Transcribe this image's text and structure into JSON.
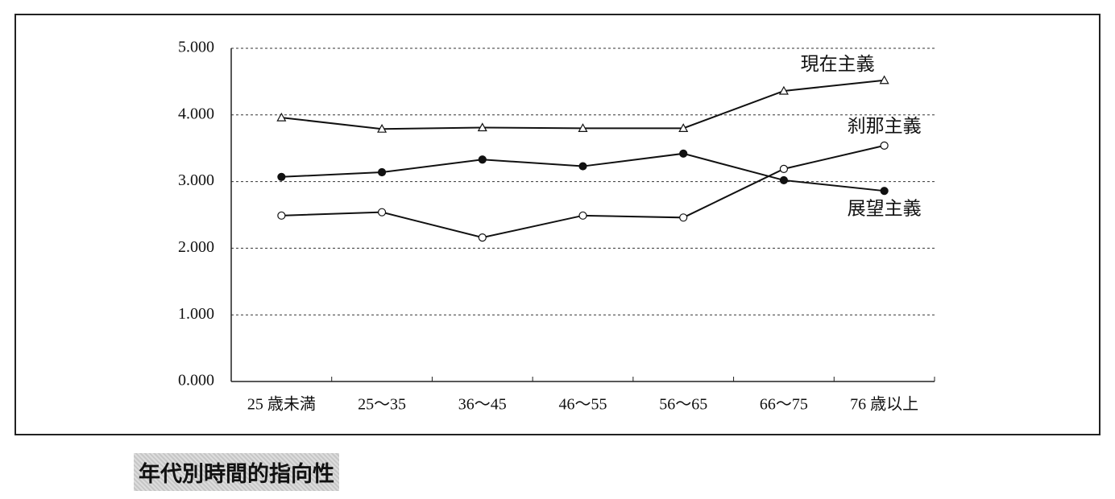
{
  "chart_data": {
    "type": "line",
    "title": "年代別時間的指向性",
    "categories": [
      "25 歳未満",
      "25～35",
      "36～45",
      "46～55",
      "56～65",
      "66～75",
      "76 歳以上"
    ],
    "ylim": [
      0,
      5
    ],
    "yticks": [
      {
        "value": 0,
        "label": "0.000"
      },
      {
        "value": 1,
        "label": "1.000"
      },
      {
        "value": 2,
        "label": "2.000"
      },
      {
        "value": 3,
        "label": "3.000"
      },
      {
        "value": 4,
        "label": "4.000"
      },
      {
        "value": 5,
        "label": "5.000"
      }
    ],
    "grid": true,
    "series": [
      {
        "name": "現在主義",
        "color": "#111111",
        "marker": "triangle",
        "marker_fill": "#ffffff",
        "values": [
          3.96,
          3.79,
          3.81,
          3.8,
          3.8,
          4.36,
          4.52
        ]
      },
      {
        "name": "刹那主義",
        "color": "#111111",
        "marker": "circle",
        "marker_fill": "#ffffff",
        "values": [
          2.49,
          2.54,
          2.16,
          2.49,
          2.46,
          3.19,
          3.54
        ]
      },
      {
        "name": "展望主義",
        "color": "#111111",
        "marker": "circle",
        "marker_fill": "#111111",
        "values": [
          3.07,
          3.14,
          3.33,
          3.23,
          3.42,
          3.02,
          2.86
        ]
      }
    ]
  }
}
